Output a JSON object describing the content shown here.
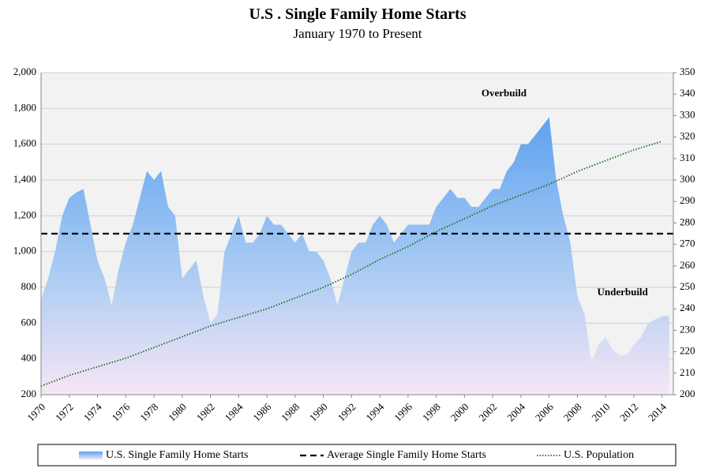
{
  "chart_data": {
    "type": "area",
    "title": "U.S . Single Family Home Starts",
    "subtitle": "January 1970 to Present",
    "xlim": [
      1970,
      2014.8
    ],
    "xticks": [
      1970,
      1972,
      1974,
      1976,
      1978,
      1980,
      1982,
      1984,
      1986,
      1988,
      1990,
      1992,
      1994,
      1996,
      1998,
      2000,
      2002,
      2004,
      2006,
      2008,
      2010,
      2012,
      2014
    ],
    "ylim": [
      200,
      2000
    ],
    "yticks": [
      200,
      400,
      600,
      800,
      {
        "value": 1000,
        "label": "1,000"
      },
      {
        "value": 1200,
        "label": "1,200"
      },
      {
        "value": 1400,
        "label": "1,400"
      },
      {
        "value": 1600,
        "label": "1,600"
      },
      {
        "value": 1800,
        "label": "1,800"
      },
      {
        "value": 2000,
        "label": "2,000"
      }
    ],
    "y2lim": [
      200,
      350
    ],
    "y2ticks": [
      200,
      210,
      220,
      230,
      240,
      250,
      260,
      270,
      280,
      290,
      300,
      310,
      320,
      330,
      340,
      350
    ],
    "grid": true,
    "series": [
      {
        "name": "U.S. Single Family Home Starts",
        "type": "area",
        "color": "#6aa9f0",
        "x": [
          1970.0,
          1970.5,
          1971.0,
          1971.5,
          1972.0,
          1972.5,
          1973.0,
          1973.5,
          1974.0,
          1974.5,
          1975.0,
          1975.5,
          1976.0,
          1976.5,
          1977.0,
          1977.5,
          1978.0,
          1978.5,
          1979.0,
          1979.5,
          1980.0,
          1980.5,
          1981.0,
          1981.5,
          1982.0,
          1982.5,
          1983.0,
          1983.5,
          1984.0,
          1984.5,
          1985.0,
          1985.5,
          1986.0,
          1986.5,
          1987.0,
          1987.5,
          1988.0,
          1988.5,
          1989.0,
          1989.5,
          1990.0,
          1990.5,
          1991.0,
          1991.5,
          1992.0,
          1992.5,
          1993.0,
          1993.5,
          1994.0,
          1994.5,
          1995.0,
          1995.5,
          1996.0,
          1996.5,
          1997.0,
          1997.5,
          1998.0,
          1998.5,
          1999.0,
          1999.5,
          2000.0,
          2000.5,
          2001.0,
          2001.5,
          2002.0,
          2002.5,
          2003.0,
          2003.5,
          2004.0,
          2004.5,
          2005.0,
          2005.5,
          2006.0,
          2006.5,
          2007.0,
          2007.5,
          2008.0,
          2008.5,
          2009.0,
          2009.5,
          2010.0,
          2010.5,
          2011.0,
          2011.5,
          2012.0,
          2012.5,
          2013.0,
          2013.5,
          2014.0,
          2014.5
        ],
        "values": [
          730,
          850,
          1000,
          1200,
          1300,
          1330,
          1350,
          1150,
          950,
          850,
          700,
          900,
          1050,
          1150,
          1300,
          1450,
          1400,
          1450,
          1250,
          1200,
          850,
          900,
          950,
          750,
          600,
          650,
          1000,
          1100,
          1200,
          1050,
          1050,
          1100,
          1200,
          1150,
          1150,
          1100,
          1050,
          1100,
          1000,
          1000,
          950,
          850,
          700,
          850,
          1000,
          1050,
          1050,
          1150,
          1200,
          1150,
          1050,
          1100,
          1150,
          1150,
          1150,
          1150,
          1250,
          1300,
          1350,
          1300,
          1300,
          1250,
          1250,
          1300,
          1350,
          1350,
          1450,
          1500,
          1600,
          1600,
          1650,
          1700,
          1750,
          1400,
          1200,
          1050,
          750,
          650,
          380,
          480,
          520,
          450,
          420,
          420,
          480,
          520,
          600,
          620,
          640,
          640
        ]
      },
      {
        "name": "Average Single Family Home Starts",
        "type": "dashed",
        "color": "#000000",
        "x": [
          1970,
          2014.8
        ],
        "values": [
          1100,
          1100
        ]
      },
      {
        "name": "U.S. Population",
        "type": "dotted",
        "color": "#1f6b1f",
        "axis": "y2",
        "x": [
          1970,
          1972,
          1974,
          1976,
          1978,
          1980,
          1982,
          1984,
          1986,
          1988,
          1990,
          1992,
          1994,
          1996,
          1998,
          2000,
          2002,
          2004,
          2006,
          2008,
          2010,
          2012,
          2014
        ],
        "values": [
          204,
          209,
          213,
          217,
          222,
          227,
          232,
          236,
          240,
          245,
          250,
          256,
          263,
          269,
          276,
          282,
          288,
          293,
          298,
          304,
          309,
          314,
          318
        ]
      }
    ],
    "annotations": [
      {
        "text": "Overbuild",
        "x": 2002.8,
        "y": 1880
      },
      {
        "text": "Underbuild",
        "x": 2011.2,
        "y": 770
      }
    ]
  }
}
